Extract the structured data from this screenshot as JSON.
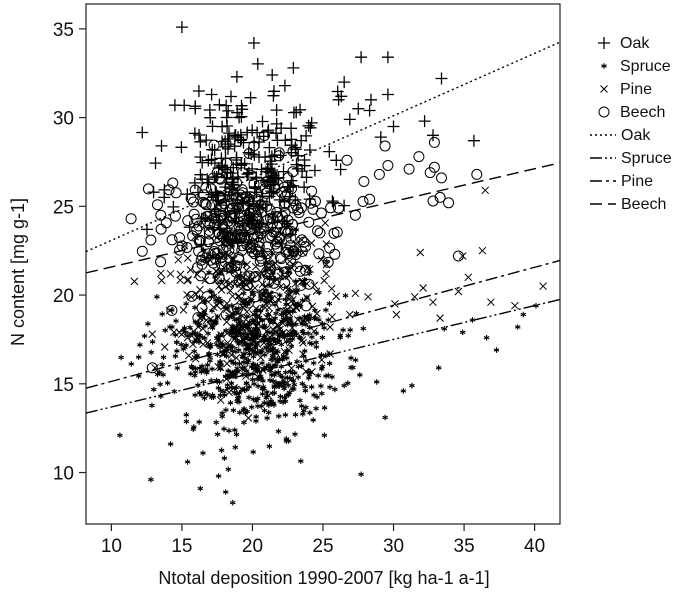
{
  "chart_data": {
    "type": "scatter",
    "xlabel": "Ntotal deposition 1990-2007 [kg ha-1 a-1]",
    "ylabel": "N content [mg g-1]",
    "xlim": [
      8.2,
      41.8
    ],
    "ylim": [
      7.1,
      36.4
    ],
    "xticks": [
      10,
      15,
      20,
      25,
      30,
      35,
      40
    ],
    "yticks": [
      10,
      15,
      20,
      25,
      30,
      35
    ],
    "legend_position": "right",
    "grid": false,
    "series": [
      {
        "name": "Oak",
        "marker": "plus",
        "cluster": {
          "n": 230,
          "x_mean": 19.8,
          "x_sd": 2.7,
          "y_mean": 27.3,
          "y_sd": 2.1,
          "seed": 11
        },
        "points": [
          [
            15.0,
            35.1
          ],
          [
            20.1,
            34.2
          ],
          [
            22.9,
            32.8
          ],
          [
            21.4,
            32.4
          ],
          [
            18.9,
            32.3
          ],
          [
            27.7,
            33.4
          ],
          [
            29.6,
            33.4
          ],
          [
            33.4,
            32.2
          ],
          [
            26.5,
            32.0
          ],
          [
            26.3,
            31.2
          ],
          [
            28.4,
            31.0
          ],
          [
            29.6,
            31.3
          ],
          [
            27.5,
            30.5
          ],
          [
            28.3,
            30.4
          ],
          [
            32.2,
            29.8
          ],
          [
            32.8,
            29.0
          ],
          [
            35.7,
            28.7
          ],
          [
            30.0,
            29.5
          ],
          [
            26.9,
            29.9
          ],
          [
            29.1,
            28.9
          ],
          [
            14.5,
            30.7
          ],
          [
            16.2,
            31.5
          ],
          [
            17.1,
            31.3
          ],
          [
            22.3,
            31.8
          ],
          [
            23.1,
            30.3
          ],
          [
            24.2,
            29.7
          ]
        ]
      },
      {
        "name": "Spruce",
        "marker": "star",
        "cluster": {
          "n": 650,
          "x_mean": 19.8,
          "x_sd": 3.1,
          "y_mean": 16.7,
          "y_sd": 2.2,
          "seed": 23
        },
        "points": [
          [
            10.6,
            12.1
          ],
          [
            12.8,
            9.6
          ],
          [
            13.5,
            14.3
          ],
          [
            14.2,
            11.6
          ],
          [
            15.4,
            10.6
          ],
          [
            16.3,
            9.1
          ],
          [
            18.1,
            8.9
          ],
          [
            18.6,
            8.3
          ],
          [
            17.6,
            9.8
          ],
          [
            27.7,
            9.9
          ],
          [
            22.4,
            11.9
          ],
          [
            25.1,
            12.1
          ],
          [
            29.4,
            13.1
          ],
          [
            30.7,
            14.6
          ],
          [
            31.3,
            14.9
          ],
          [
            33.2,
            15.9
          ],
          [
            33.6,
            18.1
          ],
          [
            36.6,
            17.6
          ],
          [
            37.3,
            16.9
          ],
          [
            39.2,
            18.9
          ],
          [
            40.1,
            19.4
          ],
          [
            38.8,
            18.2
          ],
          [
            26.5,
            14.9
          ],
          [
            35.6,
            18.6
          ],
          [
            34.9,
            17.9
          ]
        ]
      },
      {
        "name": "Pine",
        "marker": "x",
        "cluster": {
          "n": 300,
          "x_mean": 19.7,
          "x_sd": 2.6,
          "y_mean": 19.8,
          "y_sd": 2.4,
          "seed": 37
        },
        "points": [
          [
            12.9,
            17.8
          ],
          [
            13.1,
            15.9
          ],
          [
            36.5,
            25.9
          ],
          [
            34.9,
            22.2
          ],
          [
            36.3,
            22.5
          ],
          [
            31.9,
            22.4
          ],
          [
            32.1,
            20.4
          ],
          [
            32.8,
            19.6
          ],
          [
            31.5,
            19.9
          ],
          [
            30.2,
            18.9
          ],
          [
            30.1,
            19.5
          ],
          [
            34.6,
            20.2
          ],
          [
            36.9,
            19.6
          ],
          [
            38.6,
            19.4
          ],
          [
            40.6,
            20.5
          ],
          [
            28.2,
            19.9
          ],
          [
            26.9,
            18.9
          ],
          [
            25.5,
            18.2
          ],
          [
            27.3,
            20.1
          ],
          [
            33.3,
            18.7
          ],
          [
            35.3,
            21.0
          ]
        ]
      },
      {
        "name": "Beech",
        "marker": "circle",
        "cluster": {
          "n": 330,
          "x_mean": 19.9,
          "x_sd": 2.9,
          "y_mean": 23.5,
          "y_sd": 2.0,
          "seed": 53
        },
        "points": [
          [
            11.4,
            24.3
          ],
          [
            12.8,
            23.1
          ],
          [
            13.5,
            24.5
          ],
          [
            12.9,
            15.9
          ],
          [
            26.7,
            27.6
          ],
          [
            27.9,
            26.4
          ],
          [
            29.4,
            28.4
          ],
          [
            31.1,
            27.1
          ],
          [
            31.8,
            27.8
          ],
          [
            32.6,
            26.9
          ],
          [
            32.9,
            27.2
          ],
          [
            33.4,
            26.6
          ],
          [
            33.3,
            25.5
          ],
          [
            33.9,
            25.2
          ],
          [
            32.8,
            25.3
          ],
          [
            34.6,
            22.2
          ],
          [
            35.9,
            26.8
          ],
          [
            32.9,
            28.6
          ],
          [
            29.6,
            27.3
          ],
          [
            29.0,
            26.8
          ],
          [
            27.3,
            24.5
          ],
          [
            26.1,
            24.9
          ],
          [
            28.3,
            25.4
          ]
        ]
      }
    ],
    "fit_lines": [
      {
        "name": "Oak",
        "dash": "dotted",
        "x": [
          8.2,
          41.8
        ],
        "y": [
          22.45,
          34.25
        ]
      },
      {
        "name": "Spruce",
        "dash": "dash-dot-dot",
        "x": [
          8.2,
          41.8
        ],
        "y": [
          13.35,
          19.75
        ]
      },
      {
        "name": "Pine",
        "dash": "dash-dot",
        "x": [
          8.2,
          41.8
        ],
        "y": [
          14.75,
          21.95
        ]
      },
      {
        "name": "Beech",
        "dash": "dashed",
        "x": [
          8.2,
          41.8
        ],
        "y": [
          21.25,
          27.45
        ]
      }
    ]
  }
}
